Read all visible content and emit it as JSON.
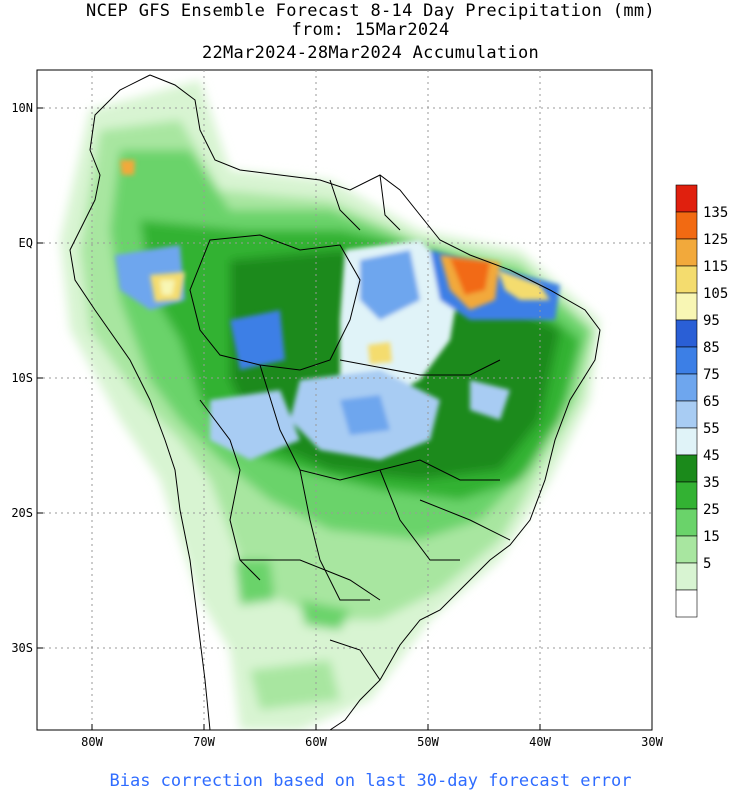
{
  "header": {
    "line1": "NCEP GFS Ensemble Forecast 8-14 Day Precipitation (mm)",
    "line2": "from: 15Mar2024",
    "line3": "22Mar2024-28Mar2024 Accumulation"
  },
  "footer": {
    "note": "Bias correction based on last 30-day forecast error"
  },
  "axes": {
    "lat_labels": [
      "10N",
      "EQ",
      "10S",
      "20S",
      "30S"
    ],
    "lon_labels": [
      "80W",
      "70W",
      "60W",
      "50W",
      "40W",
      "30W"
    ]
  },
  "colorbar": {
    "levels": [
      "135",
      "125",
      "115",
      "105",
      "95",
      "85",
      "75",
      "65",
      "55",
      "45",
      "35",
      "25",
      "15",
      "5"
    ],
    "colors": [
      "#e0200e",
      "#f26a12",
      "#f2a93b",
      "#f4dc6e",
      "#f8f6b4",
      "#2a5fd6",
      "#3c7fe6",
      "#6ea6ee",
      "#a8ccf3",
      "#e0f3f8",
      "#1b8a1b",
      "#33b233",
      "#6ad36a",
      "#a8e6a0",
      "#d8f4d2",
      "#ffffff"
    ]
  },
  "map": {
    "region": "South America",
    "field": "8-14 day accumulated precipitation",
    "units": "mm"
  }
}
